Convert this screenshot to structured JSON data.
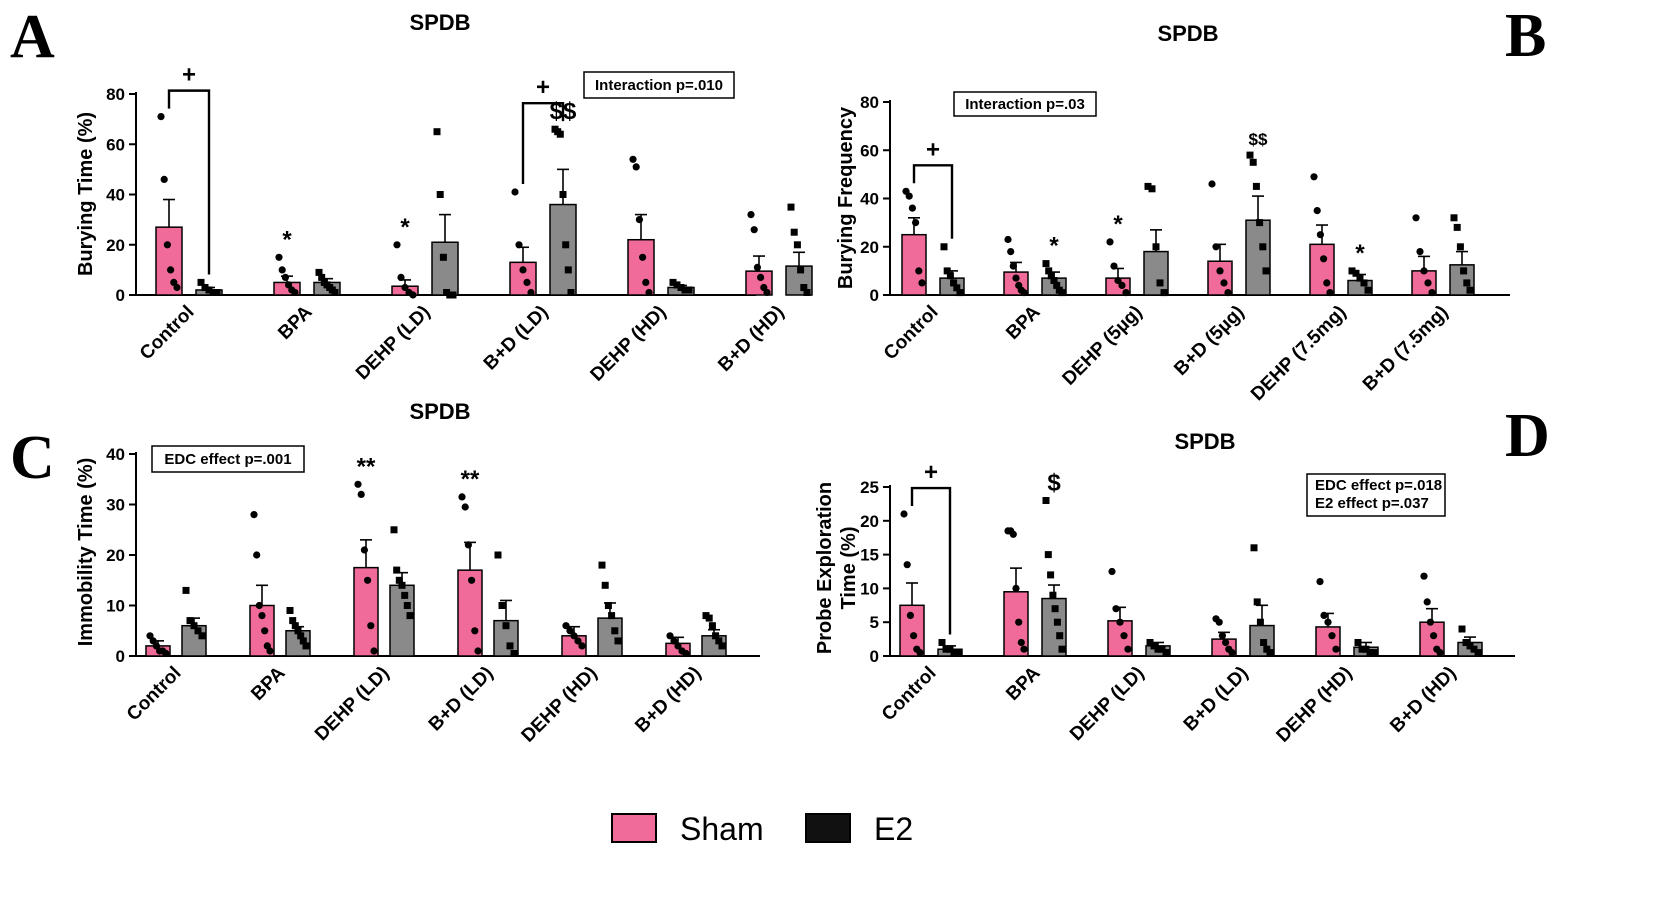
{
  "legend": [
    {
      "name": "Sham",
      "color": "#f06b99"
    },
    {
      "name": "E2",
      "color": "#111111"
    }
  ],
  "colors": {
    "sham": "#f06b99",
    "e2": "#8a8a8a",
    "point": "#000000"
  },
  "chart_data": [
    {
      "id": "A",
      "letter": "A",
      "type": "bar",
      "title": "SPDB",
      "ylabel": "Burying Time (%)",
      "ylim": [
        0,
        80
      ],
      "yticks": [
        0,
        20,
        40,
        60,
        80
      ],
      "categories": [
        "Control",
        "BPA",
        "DEHP (LD)",
        "B+D (LD)",
        "DEHP (HD)",
        "B+D (HD)"
      ],
      "series": [
        {
          "name": "Sham",
          "values": [
            27,
            5,
            3.5,
            13,
            22,
            9.5
          ],
          "sem": [
            11,
            2.5,
            2.5,
            6,
            10,
            6
          ],
          "points": [
            [
              71,
              46,
              20,
              10,
              5,
              3
            ],
            [
              15,
              10,
              7,
              4,
              2,
              1
            ],
            [
              20,
              7,
              3,
              1,
              0
            ],
            [
              41,
              20,
              10,
              5,
              1
            ],
            [
              54,
              51,
              30,
              15,
              5,
              1
            ],
            [
              32,
              26,
              11,
              7,
              3,
              1
            ]
          ]
        },
        {
          "name": "E2",
          "values": [
            2,
            5,
            21,
            36,
            3,
            11.5
          ],
          "sem": [
            1,
            1.5,
            11,
            14,
            0.8,
            5.5
          ],
          "points": [
            [
              5,
              3,
              2,
              1,
              1
            ],
            [
              9,
              7,
              5,
              4,
              3,
              2,
              1
            ],
            [
              65,
              40,
              15,
              1,
              0,
              0
            ],
            [
              66,
              65,
              64,
              40,
              20,
              10,
              1
            ],
            [
              5,
              4,
              3,
              2,
              2
            ],
            [
              35,
              25,
              20,
              10,
              3,
              1
            ]
          ]
        }
      ],
      "annotations": [
        {
          "text": "Interaction p=.010",
          "position": "top-right"
        }
      ],
      "significance": [
        {
          "text": "+",
          "type": "bracket",
          "category": "Control"
        },
        {
          "text": "*",
          "category": "BPA",
          "series": "Sham"
        },
        {
          "text": "*",
          "category": "DEHP (LD)",
          "series": "Sham"
        },
        {
          "text": "+",
          "type": "bracket",
          "category": "B+D (LD)"
        },
        {
          "text": "$$",
          "category": "B+D (LD)",
          "series": "E2"
        }
      ]
    },
    {
      "id": "B",
      "letter": "B",
      "type": "bar",
      "title": "SPDB",
      "ylabel": "Burying Frequency",
      "ylim": [
        0,
        80
      ],
      "yticks": [
        0,
        20,
        40,
        60,
        80
      ],
      "categories": [
        "Control",
        "BPA",
        "DEHP (5µg)",
        "B+D (5µg)",
        "DEHP (7.5mg)",
        "B+D (7.5mg)"
      ],
      "series": [
        {
          "name": "Sham",
          "values": [
            25,
            9.5,
            7,
            14,
            21,
            10
          ],
          "sem": [
            7,
            4,
            4,
            7,
            8,
            6
          ],
          "points": [
            [
              43,
              41,
              36,
              30,
              10,
              5
            ],
            [
              23,
              18,
              12,
              7,
              4,
              2,
              1
            ],
            [
              22,
              12,
              6,
              4,
              1
            ],
            [
              46,
              20,
              10,
              5,
              1
            ],
            [
              49,
              35,
              25,
              15,
              5,
              1
            ],
            [
              32,
              18,
              10,
              5,
              1
            ]
          ]
        },
        {
          "name": "E2",
          "values": [
            7,
            7,
            18,
            31,
            6,
            12.5
          ],
          "sem": [
            3,
            2.5,
            9,
            10,
            2.5,
            5.5
          ],
          "points": [
            [
              20,
              10,
              8,
              5,
              3,
              1
            ],
            [
              13,
              10,
              8,
              6,
              4,
              2,
              1
            ],
            [
              45,
              44,
              20,
              5,
              1
            ],
            [
              58,
              55,
              45,
              30,
              20,
              10
            ],
            [
              10,
              9,
              7,
              5,
              2
            ],
            [
              32,
              28,
              20,
              10,
              5,
              2
            ]
          ]
        }
      ],
      "annotations": [
        {
          "text": "Interaction p=.03",
          "position": "top-left"
        }
      ],
      "significance": [
        {
          "text": "+",
          "type": "bracket",
          "category": "Control"
        },
        {
          "text": "*",
          "category": "BPA",
          "series": "E2"
        },
        {
          "text": "*",
          "category": "DEHP (5µg)",
          "series": "Sham"
        },
        {
          "text": "$$",
          "category": "B+D (5µg)",
          "series": "E2"
        },
        {
          "text": "*",
          "category": "DEHP (7.5mg)",
          "series": "E2"
        }
      ]
    },
    {
      "id": "C",
      "letter": "C",
      "type": "bar",
      "title": "SPDB",
      "ylabel": "Immobility Time (%)",
      "ylim": [
        0,
        40
      ],
      "yticks": [
        0,
        10,
        20,
        30,
        40
      ],
      "categories": [
        "Control",
        "BPA",
        "DEHP (LD)",
        "B+D (LD)",
        "DEHP (HD)",
        "B+D (HD)"
      ],
      "series": [
        {
          "name": "Sham",
          "values": [
            2,
            10,
            17.5,
            17,
            4,
            2.5
          ],
          "sem": [
            1,
            4,
            5.5,
            5.5,
            1.8,
            1.2
          ],
          "points": [
            [
              4,
              3,
              2,
              1,
              1,
              0.5
            ],
            [
              28,
              20,
              10,
              8,
              5,
              2,
              1
            ],
            [
              34,
              32,
              21,
              15,
              6,
              1
            ],
            [
              31.5,
              29.5,
              22,
              15,
              5,
              1
            ],
            [
              6,
              5,
              4,
              3,
              2
            ],
            [
              4,
              3,
              2,
              1,
              0.5
            ]
          ]
        },
        {
          "name": "E2",
          "values": [
            6,
            5,
            14,
            7,
            7.5,
            4
          ],
          "sem": [
            1.5,
            0.8,
            2.5,
            4,
            3,
            1.2
          ],
          "points": [
            [
              13,
              7,
              6,
              5,
              4
            ],
            [
              9,
              7,
              6,
              5,
              4,
              3,
              2
            ],
            [
              25,
              17,
              15,
              14,
              12,
              10,
              8
            ],
            [
              20,
              10,
              6,
              2,
              0.5
            ],
            [
              18,
              14,
              10,
              8,
              5,
              3
            ],
            [
              8,
              7.5,
              6,
              4,
              3,
              2
            ]
          ]
        }
      ],
      "annotations": [
        {
          "text": "EDC effect p=.001",
          "position": "top-left"
        }
      ],
      "significance": [
        {
          "text": "**",
          "category": "DEHP (LD)",
          "series": "Sham"
        },
        {
          "text": "**",
          "category": "B+D (LD)",
          "series": "Sham"
        }
      ]
    },
    {
      "id": "D",
      "letter": "D",
      "type": "bar",
      "title": "SPDB",
      "ylabel": "Probe Exploration Time (%)",
      "ylabel_lines": [
        "Probe Exploration",
        "Time (%)"
      ],
      "ylim": [
        0,
        25
      ],
      "yticks": [
        0,
        5,
        10,
        15,
        20,
        25
      ],
      "categories": [
        "Control",
        "BPA",
        "DEHP (LD)",
        "B+D (LD)",
        "DEHP (HD)",
        "B+D (HD)"
      ],
      "series": [
        {
          "name": "Sham",
          "values": [
            7.5,
            9.5,
            5.2,
            2.5,
            4.3,
            5
          ],
          "sem": [
            3.3,
            3.5,
            2,
            1,
            2,
            2
          ],
          "points": [
            [
              21,
              13.5,
              6,
              3,
              1,
              0.5
            ],
            [
              18.5,
              18.5,
              18,
              10,
              5,
              2,
              1
            ],
            [
              12.5,
              7,
              5,
              3,
              1
            ],
            [
              5.5,
              5,
              3,
              2,
              1,
              0.5
            ],
            [
              11,
              6,
              5,
              3,
              1
            ],
            [
              11.8,
              8,
              5,
              3,
              1,
              0.5
            ]
          ]
        },
        {
          "name": "E2",
          "values": [
            1,
            8.5,
            1.5,
            4.5,
            1.3,
            2
          ],
          "sem": [
            0.5,
            2,
            0.5,
            3,
            0.7,
            0.8
          ],
          "points": [
            [
              2,
              1,
              1,
              0.5,
              0.5
            ],
            [
              23,
              15,
              12,
              9,
              7,
              5,
              3,
              1
            ],
            [
              2,
              1.5,
              1,
              1,
              0.5
            ],
            [
              16,
              8,
              5,
              2,
              1,
              0.5
            ],
            [
              2,
              1,
              1,
              0.5,
              0.5
            ],
            [
              4,
              2,
              1.5,
              1,
              0.5
            ]
          ]
        }
      ],
      "annotations": [
        {
          "text": "EDC effect p=.018",
          "position": "top-right"
        },
        {
          "text": "E2 effect p=.037",
          "position": "top-right"
        }
      ],
      "significance": [
        {
          "text": "+",
          "type": "bracket",
          "category": "Control"
        },
        {
          "text": "$",
          "category": "BPA",
          "series": "E2"
        }
      ]
    }
  ]
}
